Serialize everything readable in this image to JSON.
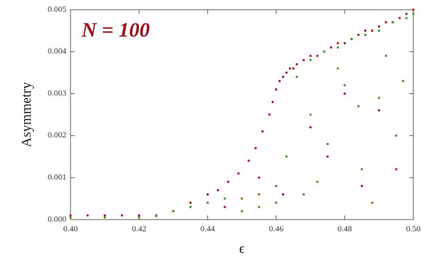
{
  "chart_data": {
    "type": "scatter",
    "title": "N = 100",
    "x_label": "ϵ",
    "y_label": "Asymmetry",
    "xlim": [
      0.4,
      0.5
    ],
    "xticks": [
      {
        "value": 0.4,
        "label": "0.40"
      },
      {
        "value": 0.42,
        "label": "0.42"
      },
      {
        "value": 0.44,
        "label": "0.44"
      },
      {
        "value": 0.46,
        "label": "0.46"
      },
      {
        "value": 0.48,
        "label": "0.48"
      },
      {
        "value": 0.5,
        "label": "0.50"
      }
    ],
    "ylim": [
      0,
      0.005
    ],
    "yticks": [
      {
        "value": 0,
        "label": "0.000"
      },
      {
        "value": 0.001,
        "label": "0.001"
      },
      {
        "value": 0.002,
        "label": "0.002"
      },
      {
        "value": 0.003,
        "label": "0.003"
      },
      {
        "value": 0.004,
        "label": "0.004"
      },
      {
        "value": 0.005,
        "label": "0.005"
      }
    ],
    "series": [
      {
        "color": "#c0121a",
        "x": [
          0.4,
          0.405,
          0.41,
          0.415,
          0.42,
          0.425,
          0.43,
          0.435,
          0.44,
          0.443,
          0.446,
          0.449,
          0.452,
          0.454,
          0.456,
          0.458,
          0.459,
          0.46,
          0.461,
          0.462,
          0.463,
          0.464,
          0.465,
          0.466,
          0.468,
          0.47,
          0.472,
          0.474,
          0.476,
          0.478,
          0.48,
          0.482,
          0.484,
          0.486,
          0.488,
          0.49,
          0.492,
          0.494,
          0.496,
          0.498,
          0.5,
          0.47,
          0.475,
          0.48,
          0.485,
          0.49,
          0.495,
          0.445,
          0.455,
          0.462
        ],
        "values": [
          0.0001,
          0.0001,
          0.0001,
          0.0001,
          0.0001,
          0.0001,
          0.0002,
          0.0004,
          0.0006,
          0.0007,
          0.0009,
          0.0011,
          0.0014,
          0.0017,
          0.0021,
          0.0025,
          0.0028,
          0.0031,
          0.0033,
          0.0034,
          0.0035,
          0.0036,
          0.0036,
          0.0037,
          0.0038,
          0.0039,
          0.0039,
          0.004,
          0.0041,
          0.0042,
          0.0042,
          0.0043,
          0.0044,
          0.0045,
          0.0045,
          0.0046,
          0.0047,
          0.0047,
          0.0048,
          0.0049,
          0.005,
          0.0022,
          0.0015,
          0.003,
          0.0008,
          0.0026,
          0.0012,
          0.0003,
          0.001,
          0.0006
        ]
      },
      {
        "color": "#3aa01e",
        "x": [
          0.4,
          0.41,
          0.42,
          0.425,
          0.43,
          0.435,
          0.44,
          0.445,
          0.45,
          0.455,
          0.46,
          0.463,
          0.466,
          0.47,
          0.474,
          0.478,
          0.482,
          0.486,
          0.49,
          0.494,
          0.498,
          0.5,
          0.47,
          0.475,
          0.48,
          0.485,
          0.49,
          0.495,
          0.468,
          0.472,
          0.478,
          0.484,
          0.488,
          0.492,
          0.497,
          0.45,
          0.455,
          0.46
        ],
        "values": [
          5e-05,
          5e-05,
          5e-05,
          8e-05,
          0.0002,
          0.0003,
          0.0004,
          0.0005,
          0.0005,
          0.0006,
          0.0008,
          0.0015,
          0.0034,
          0.0038,
          0.004,
          0.0041,
          0.0043,
          0.0044,
          0.0045,
          0.0047,
          0.0048,
          0.0049,
          0.0025,
          0.0018,
          0.0032,
          0.0012,
          0.0029,
          0.002,
          0.0006,
          0.0009,
          0.0036,
          0.0027,
          0.0004,
          0.0039,
          0.0033,
          0.0002,
          0.0003,
          0.0004
        ]
      }
    ]
  }
}
